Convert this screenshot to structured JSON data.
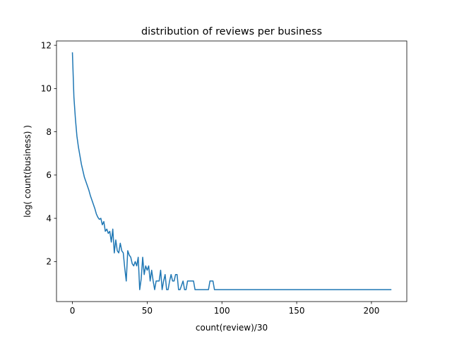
{
  "chart_data": {
    "type": "line",
    "title": "distribution of reviews per business",
    "xlabel": "count(review)/30",
    "ylabel": "log( count(business) )",
    "xlim": [
      -10.65,
      223.65
    ],
    "ylim": [
      0.15,
      12.2
    ],
    "x_ticks": [
      0,
      50,
      100,
      150,
      200
    ],
    "y_ticks": [
      2,
      4,
      6,
      8,
      10,
      12
    ],
    "x_tick_labels": [
      "0",
      "50",
      "100",
      "150",
      "200"
    ],
    "y_tick_labels": [
      "2",
      "4",
      "6",
      "8",
      "10",
      "12"
    ],
    "grid": false,
    "legend": "none",
    "series": [
      {
        "color": "#1f77b4",
        "x": [
          0,
          1,
          2,
          3,
          4,
          5,
          6,
          7,
          8,
          9,
          10,
          11,
          12,
          13,
          14,
          15,
          16,
          17,
          18,
          19,
          20,
          21,
          22,
          23,
          24,
          25,
          26,
          27,
          28,
          29,
          30,
          31,
          32,
          33,
          34,
          35,
          36,
          37,
          38,
          39,
          40,
          41,
          42,
          43,
          44,
          45,
          46,
          47,
          48,
          49,
          50,
          51,
          52,
          53,
          54,
          55,
          56,
          57,
          58,
          59,
          60,
          61,
          62,
          63,
          64,
          65,
          66,
          67,
          68,
          69,
          70,
          71,
          72,
          73,
          74,
          75,
          76,
          77,
          78,
          79,
          80,
          81,
          82,
          83,
          84,
          85,
          86,
          87,
          88,
          89,
          90,
          91,
          92,
          93,
          94,
          95,
          213
        ],
        "values": [
          11.65,
          9.6,
          8.6,
          7.8,
          7.3,
          6.9,
          6.5,
          6.2,
          5.9,
          5.7,
          5.5,
          5.3,
          5.05,
          4.85,
          4.65,
          4.45,
          4.2,
          4.05,
          3.95,
          4.0,
          3.7,
          3.85,
          3.4,
          3.5,
          3.3,
          3.4,
          2.9,
          3.5,
          2.4,
          3.0,
          2.5,
          2.4,
          2.85,
          2.5,
          2.4,
          1.7,
          1.1,
          2.5,
          2.3,
          2.2,
          1.9,
          1.8,
          2.0,
          1.8,
          2.2,
          0.7,
          1.2,
          2.2,
          1.4,
          1.8,
          1.6,
          1.8,
          1.1,
          1.6,
          1.1,
          0.7,
          1.1,
          1.1,
          1.1,
          1.6,
          0.7,
          1.1,
          1.4,
          0.7,
          0.7,
          1.1,
          1.4,
          1.1,
          1.1,
          1.4,
          1.4,
          0.7,
          0.7,
          0.9,
          1.1,
          0.7,
          0.7,
          1.1,
          1.1,
          1.1,
          1.1,
          1.1,
          0.7,
          0.7,
          0.7,
          0.7,
          0.7,
          0.7,
          0.7,
          0.7,
          0.7,
          0.7,
          1.1,
          1.1,
          1.1,
          0.7,
          0.7
        ]
      }
    ]
  }
}
